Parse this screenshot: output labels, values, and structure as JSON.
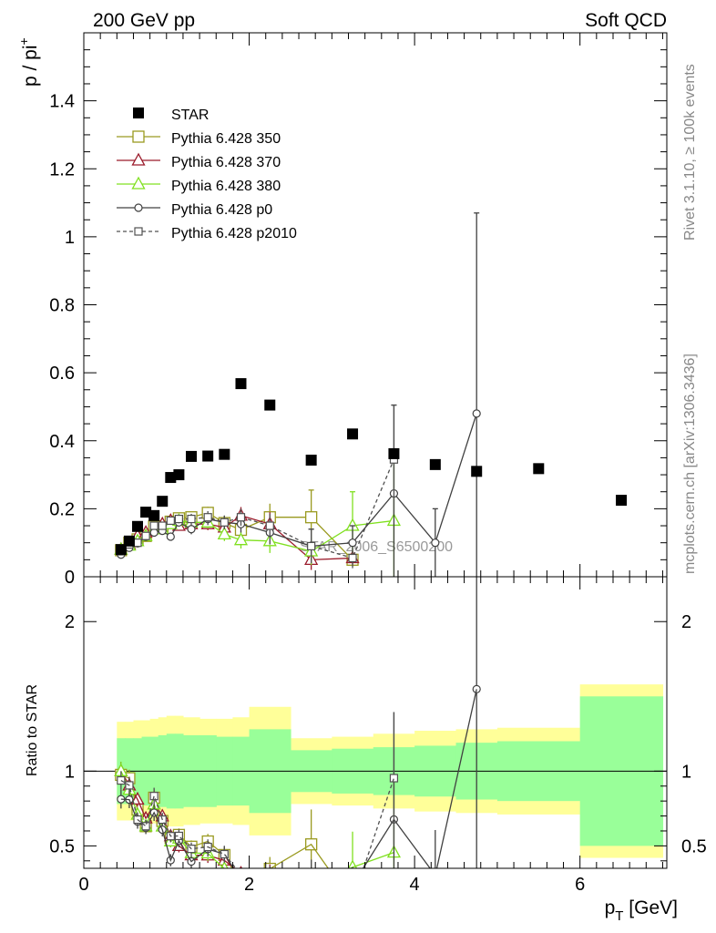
{
  "header": {
    "left_title": "200 GeV pp",
    "right_title": "Soft QCD"
  },
  "side_labels": {
    "rivet": "Rivet 3.1.10, ≥ 100k events",
    "mcplots": "mcplots.cern.ch [arXiv:1306.3436]"
  },
  "watermark": "STAR_2006_S6500200",
  "chart_data": {
    "type": "scatter",
    "main": {
      "ylabel": "p / pi",
      "ylabel_sup": "+",
      "xlim": [
        0,
        7.05
      ],
      "ylim": [
        0,
        1.6
      ],
      "yticks": [
        0,
        0.2,
        0.4,
        0.6,
        0.8,
        1,
        1.2,
        1.4
      ],
      "ytick_labels": [
        "0",
        "0.2",
        "0.4",
        "0.6",
        "0.8",
        "1",
        "1.2",
        "1.4"
      ]
    },
    "ratio": {
      "ylabel": "Ratio to STAR",
      "ylim": [
        0.35,
        2.3
      ],
      "yticks": [
        0.5,
        1,
        2
      ],
      "ytick_labels": [
        "0.5",
        "1",
        "2"
      ],
      "xlabel": "p",
      "xlabel_sub": "T",
      "xlabel_unit": " [GeV]",
      "xticks": [
        0,
        2,
        4,
        6
      ],
      "xtick_labels": [
        "0",
        "2",
        "4",
        "6"
      ],
      "band_edges": [
        0.4,
        0.5,
        0.6,
        0.7,
        0.8,
        0.9,
        1.0,
        1.1,
        1.2,
        1.4,
        1.6,
        1.8,
        2.0,
        2.5,
        3.0,
        3.5,
        4.0,
        4.5,
        5.0,
        6.0,
        7.0
      ],
      "band_inner": [
        0.22,
        0.22,
        0.22,
        0.23,
        0.23,
        0.24,
        0.25,
        0.25,
        0.24,
        0.24,
        0.23,
        0.23,
        0.28,
        0.14,
        0.15,
        0.16,
        0.17,
        0.19,
        0.2,
        0.5
      ],
      "band_outer": [
        0.33,
        0.33,
        0.34,
        0.34,
        0.35,
        0.36,
        0.37,
        0.37,
        0.36,
        0.35,
        0.35,
        0.36,
        0.43,
        0.22,
        0.23,
        0.25,
        0.27,
        0.28,
        0.29,
        0.58
      ]
    },
    "star": {
      "name": "STAR",
      "x": [
        0.45,
        0.55,
        0.65,
        0.75,
        0.85,
        0.95,
        1.05,
        1.15,
        1.3,
        1.5,
        1.7,
        1.9,
        2.25,
        2.75,
        3.25,
        3.75,
        4.25,
        4.75,
        5.5,
        6.5
      ],
      "y": [
        0.08,
        0.105,
        0.148,
        0.19,
        0.18,
        0.222,
        0.292,
        0.3,
        0.354,
        0.355,
        0.36,
        0.568,
        0.505,
        0.343,
        0.42,
        0.362,
        0.33,
        0.31,
        0.318,
        0.225
      ]
    },
    "series": [
      {
        "name": "Pythia 6.428 350",
        "color": "#9a9a20",
        "marker": "square-open",
        "dashed": false,
        "x": [
          0.45,
          0.55,
          0.65,
          0.75,
          0.85,
          0.95,
          1.05,
          1.15,
          1.3,
          1.5,
          1.7,
          1.9,
          2.25,
          2.75,
          3.25
        ],
        "y": [
          0.078,
          0.1,
          0.11,
          0.12,
          0.148,
          0.148,
          0.162,
          0.172,
          0.175,
          0.188,
          0.158,
          0.138,
          0.175,
          0.175,
          0.05
        ],
        "err": [
          0.005,
          0.006,
          0.007,
          0.008,
          0.01,
          0.01,
          0.012,
          0.013,
          0.015,
          0.018,
          0.02,
          0.025,
          0.04,
          0.08,
          0.02
        ]
      },
      {
        "name": "Pythia 6.428 370",
        "color": "#9a1a2a",
        "marker": "triangle-open",
        "dashed": false,
        "x": [
          0.45,
          0.55,
          0.65,
          0.75,
          0.85,
          0.95,
          1.05,
          1.15,
          1.3,
          1.5,
          1.7,
          1.9,
          2.25,
          2.75,
          3.25
        ],
        "y": [
          0.08,
          0.095,
          0.12,
          0.13,
          0.14,
          0.155,
          0.165,
          0.15,
          0.155,
          0.155,
          0.145,
          0.18,
          0.155,
          0.05,
          0.055
        ],
        "err": [
          0.005,
          0.006,
          0.007,
          0.008,
          0.01,
          0.01,
          0.012,
          0.013,
          0.015,
          0.018,
          0.02,
          0.025,
          0.035,
          0.03,
          0.02
        ]
      },
      {
        "name": "Pythia 6.428 380",
        "color": "#80e020",
        "marker": "triangle-open",
        "dashed": false,
        "x": [
          0.45,
          0.55,
          0.65,
          0.75,
          0.85,
          0.95,
          1.05,
          1.15,
          1.3,
          1.5,
          1.7,
          1.9,
          2.25,
          2.75,
          3.25,
          3.75
        ],
        "y": [
          0.08,
          0.092,
          0.105,
          0.12,
          0.14,
          0.14,
          0.155,
          0.165,
          0.16,
          0.16,
          0.125,
          0.108,
          0.105,
          0.075,
          0.15,
          0.165
        ],
        "err": [
          0.005,
          0.006,
          0.007,
          0.008,
          0.01,
          0.01,
          0.012,
          0.013,
          0.015,
          0.018,
          0.02,
          0.025,
          0.035,
          0.04,
          0.1,
          0.18
        ]
      },
      {
        "name": "Pythia 6.428 p0",
        "color": "#404040",
        "marker": "circle-open",
        "dashed": false,
        "x": [
          0.45,
          0.55,
          0.65,
          0.75,
          0.85,
          0.95,
          1.05,
          1.15,
          1.3,
          1.5,
          1.7,
          1.9,
          2.25,
          2.75,
          3.25,
          3.75,
          4.25,
          4.75
        ],
        "y": [
          0.065,
          0.085,
          0.098,
          0.118,
          0.13,
          0.135,
          0.118,
          0.16,
          0.14,
          0.17,
          0.16,
          0.155,
          0.13,
          0.09,
          0.1,
          0.245,
          0.1,
          0.48
        ],
        "err": [
          0.005,
          0.006,
          0.007,
          0.008,
          0.01,
          0.01,
          0.012,
          0.013,
          0.015,
          0.018,
          0.02,
          0.025,
          0.035,
          0.05,
          0.05,
          0.26,
          0.1,
          0.59
        ]
      },
      {
        "name": "Pythia 6.428 p2010",
        "color": "#505050",
        "marker": "square-small",
        "dashed": true,
        "x": [
          0.45,
          0.55,
          0.65,
          0.75,
          0.85,
          0.95,
          1.05,
          1.15,
          1.3,
          1.5,
          1.7,
          1.9,
          2.25,
          2.75,
          3.25,
          3.75
        ],
        "y": [
          0.075,
          0.095,
          0.1,
          0.12,
          0.15,
          0.15,
          0.165,
          0.17,
          0.17,
          0.175,
          0.16,
          0.175,
          0.15,
          0.09,
          0.055,
          0.345
        ],
        "err": [
          0.005,
          0.006,
          0.007,
          0.008,
          0.01,
          0.01,
          0.012,
          0.013,
          0.015,
          0.018,
          0.02,
          0.025,
          0.035,
          0.05,
          0.03,
          0.16
        ]
      }
    ],
    "legend_position": "top-left"
  }
}
